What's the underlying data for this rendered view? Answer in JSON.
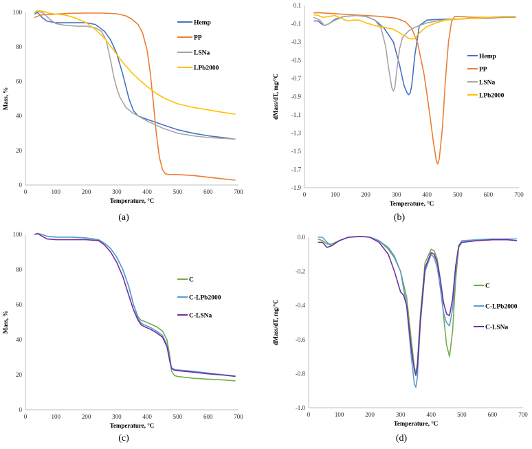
{
  "chart_data": [
    {
      "type": "line",
      "caption": "(a)",
      "xlabel": "Temperature, °C",
      "ylabel": "Mass, %",
      "xlim": [
        0,
        700
      ],
      "ylim": [
        0,
        100
      ],
      "xticks": [
        "0",
        "100",
        "200",
        "300",
        "400",
        "500",
        "600",
        "700"
      ],
      "yticks": [
        "0",
        "20",
        "40",
        "60",
        "80",
        "100"
      ],
      "grid": false,
      "legend_position": "top-right",
      "series": [
        {
          "name": "Hemp",
          "color": "#4472C4",
          "x": [
            30,
            40,
            55,
            70,
            100,
            150,
            200,
            230,
            260,
            280,
            300,
            320,
            340,
            355,
            370,
            400,
            450,
            500,
            550,
            600,
            650,
            690
          ],
          "y": [
            99,
            100,
            97,
            95,
            94,
            94,
            94,
            93,
            89,
            84,
            76,
            64,
            50,
            43,
            40,
            38,
            35,
            32,
            30,
            28.5,
            27.5,
            26.5
          ]
        },
        {
          "name": "PP",
          "color": "#ED7D31",
          "x": [
            30,
            50,
            100,
            150,
            200,
            250,
            300,
            330,
            350,
            370,
            385,
            400,
            410,
            420,
            430,
            440,
            450,
            460,
            470,
            500,
            550,
            600,
            650,
            690
          ],
          "y": [
            97,
            98.5,
            99,
            99.5,
            99.6,
            99.6,
            99.2,
            98,
            96,
            93,
            88,
            78,
            65,
            48,
            30,
            16,
            9,
            6.5,
            6,
            6,
            5.5,
            4.5,
            3.5,
            2.8
          ]
        },
        {
          "name": "LSNa",
          "color": "#A5A5A5",
          "x": [
            30,
            45,
            60,
            80,
            100,
            130,
            170,
            200,
            230,
            250,
            265,
            280,
            290,
            300,
            310,
            330,
            350,
            370,
            400,
            450,
            500,
            550,
            600,
            650,
            690
          ],
          "y": [
            100,
            100.5,
            99.5,
            96,
            93.5,
            92.5,
            92,
            92,
            91,
            89,
            84,
            72,
            63,
            56,
            51,
            45,
            42,
            40,
            37,
            33,
            30,
            28.5,
            27.5,
            27,
            26.5
          ]
        },
        {
          "name": "LPb2000",
          "color": "#FFC000",
          "x": [
            30,
            40,
            60,
            80,
            100,
            130,
            160,
            200,
            230,
            260,
            290,
            320,
            350,
            380,
            400,
            430,
            460,
            500,
            550,
            600,
            650,
            690
          ],
          "y": [
            100,
            101,
            100.5,
            99.5,
            99,
            98.5,
            97,
            94,
            90,
            85,
            78,
            71,
            65,
            60,
            57,
            53,
            50,
            47,
            45,
            43.5,
            42,
            41
          ]
        }
      ]
    },
    {
      "type": "line",
      "caption": "(b)",
      "xlabel": "Temperature, °C",
      "ylabel": "dMass/dT, mg/°C",
      "xlim": [
        0,
        700
      ],
      "ylim": [
        -1.9,
        0.1
      ],
      "xticks": [
        "0",
        "100",
        "200",
        "300",
        "400",
        "500",
        "600",
        "700"
      ],
      "yticks": [
        "0.1",
        "-0.1",
        "-0.3",
        "-0.5",
        "-0.7",
        "-0.9",
        "-1.1",
        "-1.3",
        "-1.5",
        "-1.7",
        "-1.9"
      ],
      "grid": false,
      "legend_position": "center-right",
      "series": [
        {
          "name": "Hemp",
          "color": "#4472C4",
          "x": [
            30,
            45,
            55,
            65,
            80,
            100,
            130,
            170,
            200,
            230,
            260,
            290,
            310,
            325,
            335,
            340,
            345,
            350,
            360,
            375,
            400,
            450,
            500,
            550,
            600,
            650,
            690
          ],
          "y": [
            -0.07,
            -0.07,
            -0.1,
            -0.12,
            -0.1,
            -0.05,
            -0.02,
            -0.01,
            -0.02,
            -0.06,
            -0.15,
            -0.3,
            -0.55,
            -0.78,
            -0.86,
            -0.88,
            -0.86,
            -0.78,
            -0.45,
            -0.12,
            -0.06,
            -0.05,
            -0.05,
            -0.04,
            -0.04,
            -0.03,
            -0.03
          ]
        },
        {
          "name": "PP",
          "color": "#ED7D31",
          "x": [
            30,
            50,
            100,
            150,
            200,
            250,
            300,
            330,
            350,
            370,
            390,
            400,
            410,
            420,
            430,
            435,
            440,
            450,
            460,
            470,
            480,
            490,
            500,
            550,
            600,
            650,
            690
          ],
          "y": [
            0.02,
            0.02,
            0.01,
            0.0,
            -0.01,
            -0.02,
            -0.04,
            -0.08,
            -0.15,
            -0.32,
            -0.65,
            -0.88,
            -1.12,
            -1.38,
            -1.6,
            -1.64,
            -1.58,
            -1.25,
            -0.72,
            -0.3,
            -0.08,
            -0.02,
            -0.02,
            -0.03,
            -0.03,
            -0.03,
            -0.03
          ]
        },
        {
          "name": "LSNa",
          "color": "#A5A5A5",
          "x": [
            30,
            50,
            65,
            80,
            100,
            130,
            170,
            200,
            230,
            250,
            265,
            275,
            285,
            290,
            295,
            300,
            310,
            320,
            340,
            360,
            400,
            450,
            500,
            550,
            600,
            650,
            690
          ],
          "y": [
            -0.03,
            -0.06,
            -0.12,
            -0.1,
            -0.06,
            -0.02,
            -0.01,
            -0.02,
            -0.06,
            -0.15,
            -0.35,
            -0.6,
            -0.8,
            -0.84,
            -0.8,
            -0.65,
            -0.38,
            -0.25,
            -0.18,
            -0.14,
            -0.09,
            -0.06,
            -0.05,
            -0.04,
            -0.04,
            -0.03,
            -0.03
          ]
        },
        {
          "name": "LPb2000",
          "color": "#FFC000",
          "x": [
            30,
            45,
            60,
            80,
            100,
            120,
            140,
            160,
            180,
            200,
            230,
            260,
            290,
            310,
            330,
            340,
            350,
            360,
            370,
            385,
            400,
            430,
            460,
            500,
            550,
            600,
            650,
            690
          ],
          "y": [
            0.0,
            -0.01,
            -0.03,
            -0.02,
            -0.01,
            -0.04,
            -0.07,
            -0.06,
            -0.06,
            -0.09,
            -0.12,
            -0.14,
            -0.16,
            -0.2,
            -0.24,
            -0.26,
            -0.27,
            -0.26,
            -0.22,
            -0.17,
            -0.13,
            -0.09,
            -0.06,
            -0.05,
            -0.04,
            -0.03,
            -0.02,
            -0.02
          ]
        }
      ]
    },
    {
      "type": "line",
      "caption": "(c)",
      "xlabel": "Temperature, °C",
      "ylabel": "Mass, %",
      "xlim": [
        0,
        700
      ],
      "ylim": [
        0,
        100
      ],
      "xticks": [
        "0",
        "100",
        "200",
        "300",
        "400",
        "500",
        "600",
        "700"
      ],
      "yticks": [
        "0",
        "20",
        "40",
        "60",
        "80",
        "100"
      ],
      "grid": false,
      "legend_position": "center-right",
      "series": [
        {
          "name": "C",
          "color": "#70AD47",
          "x": [
            30,
            40,
            55,
            70,
            100,
            150,
            200,
            240,
            260,
            280,
            300,
            320,
            340,
            355,
            370,
            380,
            390,
            410,
            430,
            450,
            465,
            475,
            480,
            490,
            500,
            550,
            600,
            650,
            690
          ],
          "y": [
            100,
            100.5,
            100,
            99,
            98.5,
            98.5,
            98,
            97,
            95,
            92,
            87,
            80,
            70,
            60,
            53,
            51,
            50.5,
            49,
            47.5,
            45,
            40,
            30,
            22,
            19.5,
            19,
            18,
            17.5,
            17,
            16.5
          ]
        },
        {
          "name": "C-LPb2000",
          "color": "#5B9BD5",
          "x": [
            30,
            40,
            55,
            70,
            100,
            150,
            200,
            240,
            260,
            280,
            300,
            320,
            340,
            355,
            370,
            380,
            390,
            410,
            430,
            450,
            465,
            475,
            480,
            490,
            500,
            550,
            600,
            650,
            690
          ],
          "y": [
            100,
            100.5,
            100,
            99,
            98.5,
            98.5,
            98,
            97,
            95,
            92,
            87,
            80,
            70,
            60,
            52,
            49.5,
            48.5,
            47,
            45,
            42.5,
            37,
            28,
            24,
            23,
            22.8,
            22,
            21,
            20,
            19.3
          ]
        },
        {
          "name": "C-LSNa",
          "color": "#7030A0",
          "x": [
            30,
            40,
            55,
            70,
            100,
            150,
            200,
            240,
            260,
            280,
            300,
            320,
            340,
            355,
            370,
            380,
            390,
            410,
            430,
            450,
            465,
            475,
            480,
            490,
            500,
            550,
            600,
            650,
            690
          ],
          "y": [
            100,
            100.5,
            99,
            97.5,
            97,
            97,
            97,
            96.5,
            94,
            90,
            84,
            76,
            65,
            57,
            51,
            48.5,
            47.5,
            46,
            44,
            41.5,
            36,
            27,
            23.5,
            22.5,
            22.3,
            21.5,
            20.5,
            19.8,
            19
          ]
        }
      ]
    },
    {
      "type": "line",
      "caption": "(d)",
      "xlabel": "Temperature, °C",
      "ylabel": "dMass/dT, mg/°C",
      "xlim": [
        0,
        700
      ],
      "ylim": [
        -1.0,
        0.0
      ],
      "xticks": [
        "0",
        "100",
        "200",
        "300",
        "400",
        "500",
        "600",
        "700"
      ],
      "yticks": [
        "0.0",
        "-0.2",
        "-0.4",
        "-0.6",
        "-0.8",
        "-1.0"
      ],
      "grid": false,
      "legend_position": "center-right",
      "series": [
        {
          "name": "C",
          "color": "#70AD47",
          "x": [
            30,
            45,
            60,
            75,
            100,
            130,
            170,
            200,
            230,
            260,
            280,
            300,
            320,
            335,
            345,
            350,
            355,
            365,
            380,
            400,
            410,
            420,
            430,
            440,
            450,
            460,
            470,
            480,
            490,
            500,
            550,
            600,
            650,
            680
          ],
          "y": [
            -0.01,
            -0.02,
            -0.04,
            -0.04,
            -0.02,
            0.0,
            0.005,
            0.0,
            -0.02,
            -0.07,
            -0.12,
            -0.2,
            -0.35,
            -0.6,
            -0.76,
            -0.8,
            -0.74,
            -0.45,
            -0.15,
            -0.07,
            -0.08,
            -0.13,
            -0.25,
            -0.45,
            -0.63,
            -0.7,
            -0.55,
            -0.25,
            -0.06,
            -0.03,
            -0.02,
            -0.015,
            -0.015,
            -0.02
          ]
        },
        {
          "name": "C-LPb2000",
          "color": "#5B9BD5",
          "x": [
            30,
            45,
            60,
            75,
            100,
            130,
            170,
            200,
            230,
            260,
            280,
            300,
            320,
            335,
            345,
            350,
            355,
            365,
            380,
            400,
            410,
            420,
            430,
            440,
            450,
            460,
            470,
            480,
            490,
            500,
            550,
            600,
            650,
            680
          ],
          "y": [
            0.0,
            0.0,
            -0.03,
            -0.05,
            -0.02,
            0.0,
            0.005,
            0.0,
            -0.02,
            -0.06,
            -0.11,
            -0.2,
            -0.4,
            -0.7,
            -0.86,
            -0.88,
            -0.82,
            -0.5,
            -0.2,
            -0.1,
            -0.12,
            -0.18,
            -0.3,
            -0.44,
            -0.5,
            -0.52,
            -0.42,
            -0.2,
            -0.05,
            -0.02,
            -0.015,
            -0.01,
            -0.01,
            -0.01
          ]
        },
        {
          "name": "C-LSNa",
          "color": "#7030A0",
          "x": [
            30,
            45,
            60,
            75,
            100,
            130,
            170,
            200,
            230,
            260,
            280,
            300,
            310,
            320,
            335,
            345,
            350,
            355,
            365,
            380,
            400,
            410,
            420,
            430,
            440,
            450,
            460,
            470,
            480,
            490,
            500,
            550,
            600,
            650,
            680
          ],
          "y": [
            -0.03,
            -0.03,
            -0.06,
            -0.05,
            -0.02,
            0.0,
            0.005,
            0.0,
            -0.03,
            -0.1,
            -0.2,
            -0.32,
            -0.34,
            -0.4,
            -0.65,
            -0.78,
            -0.81,
            -0.76,
            -0.48,
            -0.18,
            -0.09,
            -0.1,
            -0.15,
            -0.25,
            -0.38,
            -0.45,
            -0.46,
            -0.36,
            -0.17,
            -0.05,
            -0.03,
            -0.02,
            -0.015,
            -0.015,
            -0.02
          ]
        }
      ]
    }
  ]
}
